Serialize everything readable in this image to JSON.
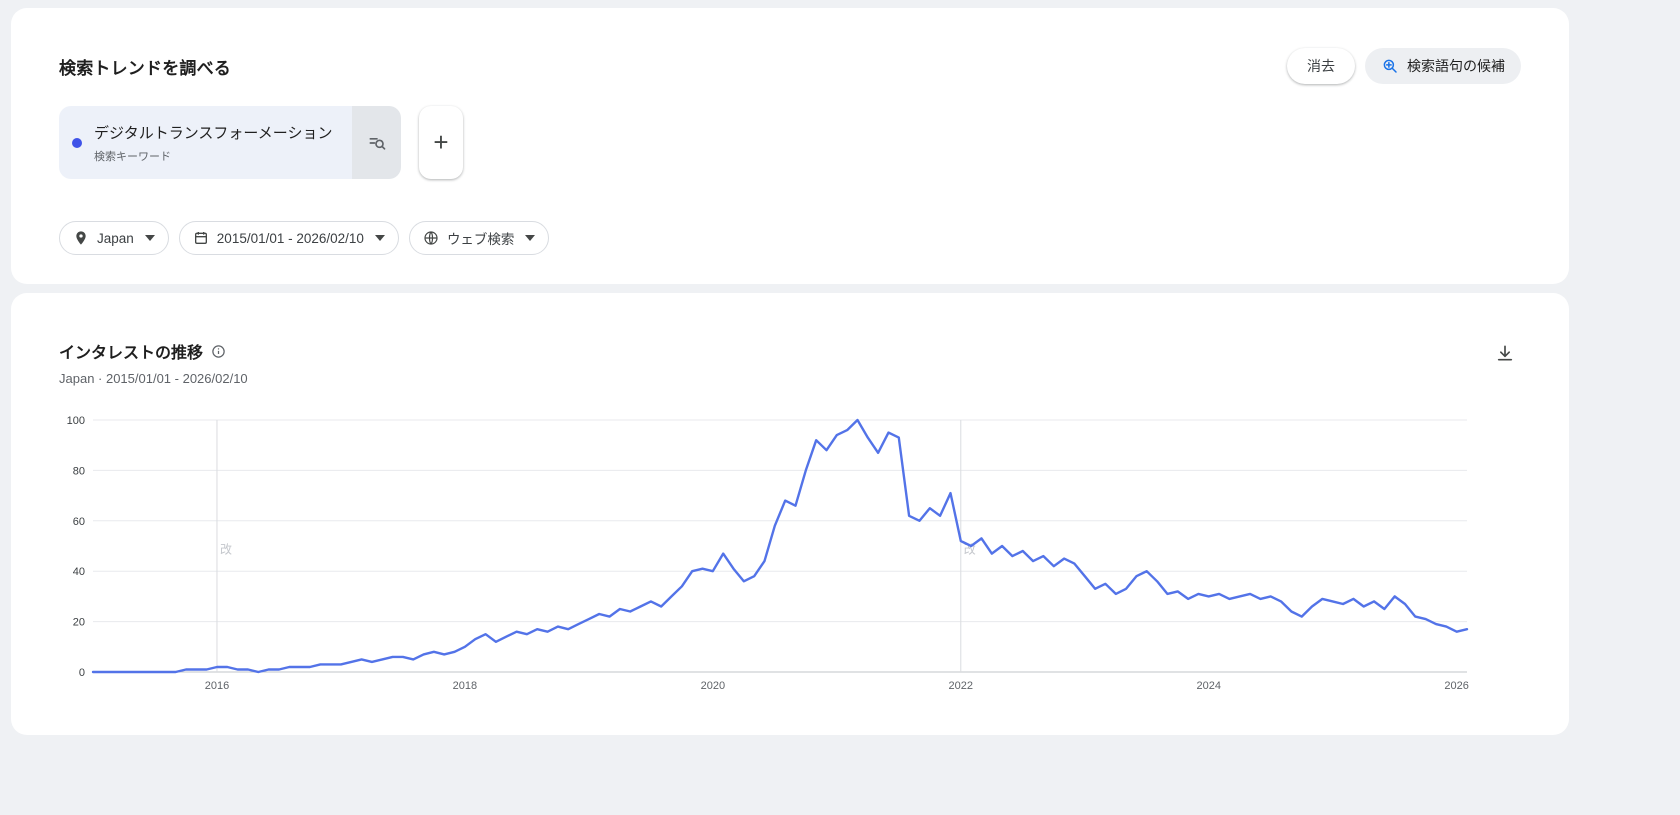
{
  "explore_card": {
    "title": "検索トレンドを調べる",
    "clear_button": "消去",
    "suggestions_button": "検索語句の候補",
    "term_chip": {
      "term": "デジタルトランスフォーメーション",
      "label": "検索キーワード",
      "dot_color": "#3e52e8"
    },
    "add_button": "+",
    "filters": [
      {
        "id": "geo",
        "label": "Japan",
        "icon": "location-pin-icon"
      },
      {
        "id": "date-range",
        "label": "2015/01/01 - 2026/02/10",
        "icon": "calendar-icon"
      },
      {
        "id": "search-type",
        "label": "ウェブ検索",
        "icon": "globe-icon"
      }
    ]
  },
  "interest_card": {
    "title": "インタレストの推移",
    "subtitle": "Japan · 2015/01/01 - 2026/02/10",
    "info_icon": "info-icon",
    "download_icon": "download-icon"
  },
  "chart_data": {
    "type": "line",
    "title": "インタレストの推移",
    "xlabel": "",
    "ylabel": "",
    "x_start": "2015-01",
    "x_end": "2026-02",
    "x_unit": "month",
    "x_tick_labels": [
      "2016",
      "2018",
      "2020",
      "2022",
      "2024",
      "2026"
    ],
    "y_ticks": [
      0,
      20,
      40,
      60,
      80,
      100
    ],
    "ylim": [
      0,
      100
    ],
    "grid": true,
    "legend": false,
    "series": [
      {
        "name": "デジタルトランスフォーメーション",
        "color": "#5373e8",
        "values": [
          0,
          0,
          0,
          0,
          0,
          0,
          0,
          0,
          0,
          1,
          1,
          1,
          2,
          2,
          1,
          1,
          0,
          1,
          1,
          2,
          2,
          2,
          3,
          3,
          3,
          4,
          5,
          4,
          5,
          6,
          6,
          5,
          7,
          8,
          7,
          8,
          10,
          13,
          15,
          12,
          14,
          16,
          15,
          17,
          16,
          18,
          17,
          19,
          21,
          23,
          22,
          25,
          24,
          26,
          28,
          26,
          30,
          34,
          40,
          41,
          40,
          47,
          41,
          36,
          38,
          44,
          58,
          68,
          66,
          80,
          92,
          88,
          94,
          96,
          100,
          93,
          87,
          95,
          93,
          62,
          60,
          65,
          62,
          71,
          52,
          50,
          53,
          47,
          50,
          46,
          48,
          44,
          46,
          42,
          45,
          43,
          38,
          33,
          35,
          31,
          33,
          38,
          40,
          36,
          31,
          32,
          29,
          31,
          30,
          31,
          29,
          30,
          31,
          29,
          30,
          28,
          24,
          22,
          26,
          29,
          28,
          27,
          29,
          26,
          28,
          25,
          30,
          27,
          22,
          21,
          19,
          18,
          16,
          17
        ]
      }
    ],
    "annotations": [
      {
        "x": "2016-01",
        "label": "改"
      },
      {
        "x": "2022-01",
        "label": "改"
      }
    ]
  }
}
